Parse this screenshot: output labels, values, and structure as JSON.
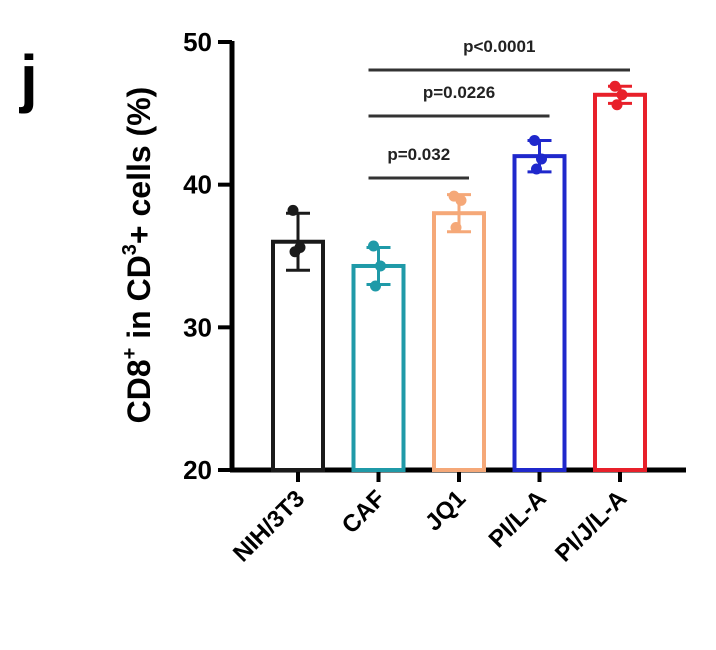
{
  "panel_label": "j",
  "chart_data": {
    "type": "bar",
    "ylabel_parts": [
      "CD8",
      "+",
      " in CD",
      "3",
      "+ cells (%)"
    ],
    "ylim": [
      20,
      50
    ],
    "yticks": [
      20,
      30,
      40,
      50
    ],
    "categories": [
      "NIH/3T3",
      "CAF",
      "JQ1",
      "PI/L-A",
      "PI/J/L-A"
    ],
    "values": [
      36.0,
      34.3,
      38.0,
      42.0,
      46.3
    ],
    "errors": [
      2.0,
      1.3,
      1.3,
      1.1,
      0.6
    ],
    "points": [
      [
        38.2,
        35.6,
        35.3
      ],
      [
        35.7,
        34.3,
        32.9
      ],
      [
        39.2,
        38.9,
        37.0
      ],
      [
        43.1,
        41.8,
        41.1
      ],
      [
        46.9,
        46.3,
        45.6
      ]
    ],
    "colors": [
      "#1a1a1a",
      "#1f9aa8",
      "#f5a878",
      "#1f28cc",
      "#e8202a"
    ],
    "significance": [
      {
        "label": "p=0.032",
        "from": 1,
        "to": 2
      },
      {
        "label": "p=0.0226",
        "from": 1,
        "to": 3
      },
      {
        "label": "p<0.0001",
        "from": 1,
        "to": 4
      }
    ]
  }
}
